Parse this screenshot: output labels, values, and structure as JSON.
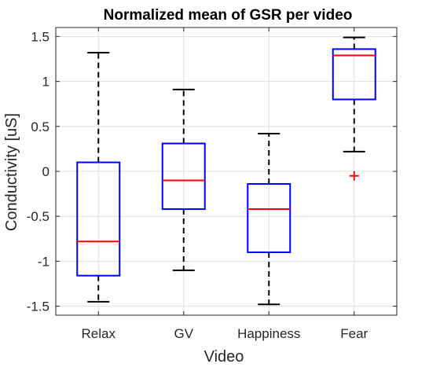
{
  "chart_data": {
    "type": "boxplot",
    "title": "Normalized mean of GSR per video",
    "xlabel": "Video",
    "ylabel": "Conductivity [uS]",
    "categories": [
      "Relax",
      "GV",
      "Happiness",
      "Fear"
    ],
    "ylim": [
      -1.6,
      1.6
    ],
    "yticks": [
      -1.5,
      -1,
      -0.5,
      0,
      0.5,
      1,
      1.5
    ],
    "ytick_labels": [
      "-1.5",
      "-1",
      "-0.5",
      "0",
      "0.5",
      "1",
      "1.5"
    ],
    "grid": true,
    "boxes": [
      {
        "category": "Relax",
        "whisker_low": -1.45,
        "q1": -1.16,
        "median": -0.78,
        "q3": 0.1,
        "whisker_high": 1.32,
        "outliers": []
      },
      {
        "category": "GV",
        "whisker_low": -1.1,
        "q1": -0.42,
        "median": -0.1,
        "q3": 0.31,
        "whisker_high": 0.91,
        "outliers": []
      },
      {
        "category": "Happiness",
        "whisker_low": -1.48,
        "q1": -0.9,
        "median": -0.42,
        "q3": -0.14,
        "whisker_high": 0.42,
        "outliers": []
      },
      {
        "category": "Fear",
        "whisker_low": 0.22,
        "q1": 0.8,
        "median": 1.29,
        "q3": 1.36,
        "whisker_high": 1.49,
        "outliers": [
          -0.05
        ]
      }
    ],
    "colors": {
      "box": "#0000ff",
      "median": "#ff0000",
      "whisker": "#000000",
      "outlier": "#ff0000",
      "grid": "#dfdfdf",
      "axis": "#262626"
    }
  }
}
